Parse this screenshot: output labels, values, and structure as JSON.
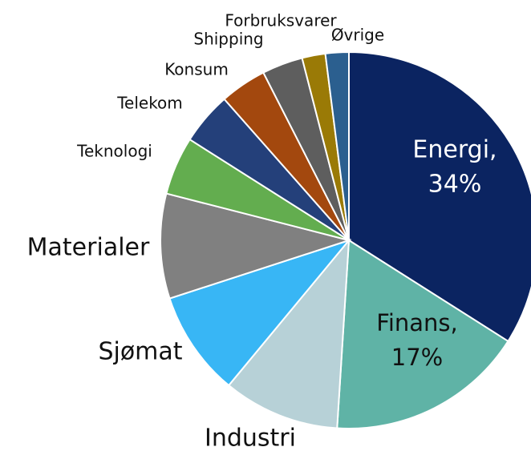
{
  "chart_data": {
    "type": "pie",
    "categories": [
      "Energi,",
      "Finans,",
      "Industri",
      "Sjømat",
      "Materialer",
      "Teknologi",
      "Telekom",
      "Konsum",
      "Shipping",
      "Forbruksvarer",
      "Øvrige"
    ],
    "values": [
      34,
      17,
      10,
      9,
      9,
      5,
      4.5,
      4,
      3.5,
      2,
      2
    ],
    "value_labels": [
      "34%",
      "17%",
      null,
      null,
      null,
      null,
      null,
      null,
      null,
      null,
      null
    ],
    "colors": [
      "#0b2461",
      "#5fb3a6",
      "#b7d1d7",
      "#38b6f5",
      "#808080",
      "#63ad4f",
      "#24407a",
      "#a3480e",
      "#5e5e5e",
      "#9a7a06",
      "#2b5f8f"
    ]
  }
}
